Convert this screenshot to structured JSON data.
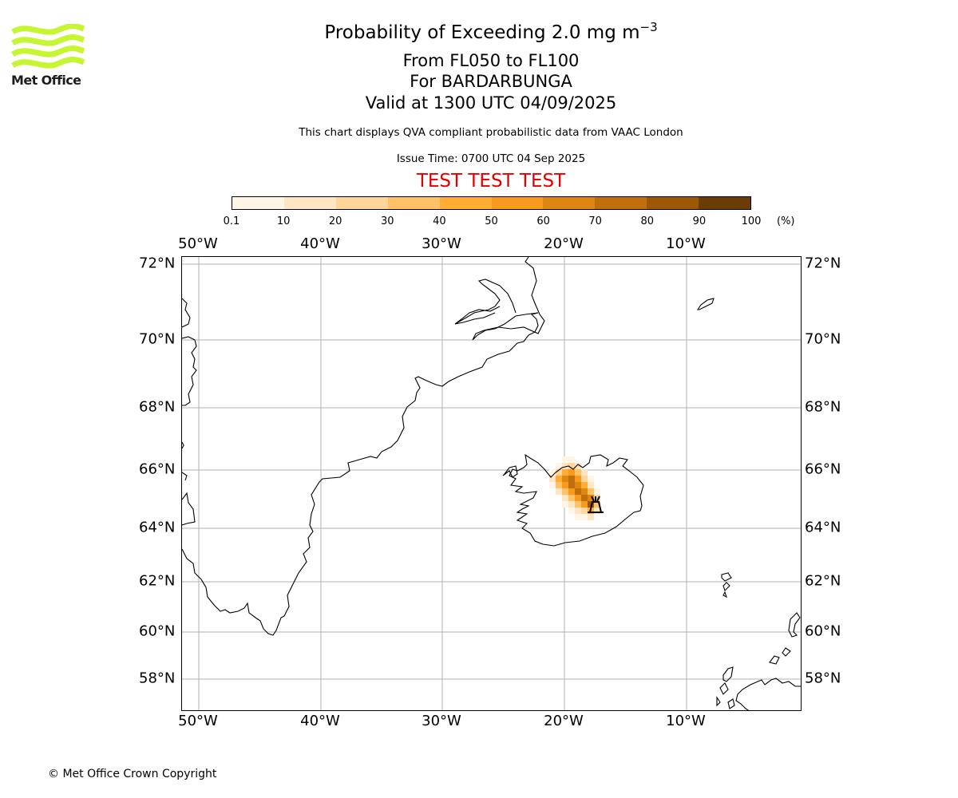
{
  "branding": {
    "logo_text": "Met Office",
    "logo_color": "#c6f531",
    "copyright": "© Met Office Crown Copyright"
  },
  "header": {
    "title_prefix": "Probability of Exceeding 2.0 mg m",
    "title_superscript": "−3",
    "level_range": "From FL050 to FL100",
    "volcano": "For BARDARBUNGA",
    "valid_time": "Valid at 1300 UTC 04/09/2025",
    "description": "This chart displays QVA compliant probabilistic data from VAAC London",
    "issue_time": "Issue Time: 0700 UTC 04 Sep 2025",
    "test_banner": "TEST TEST TEST",
    "test_banner_color": "#e00000"
  },
  "colorbar": {
    "ticks": [
      "0.1",
      "10",
      "20",
      "30",
      "40",
      "50",
      "60",
      "70",
      "80",
      "90",
      "100"
    ],
    "unit": "(%)",
    "colors": [
      "#fff5e6",
      "#ffe6c2",
      "#ffd699",
      "#ffc266",
      "#ffad33",
      "#f79a1e",
      "#dd8610",
      "#bf700a",
      "#9c5805",
      "#6b3c05"
    ]
  },
  "map": {
    "longitude_labels": [
      "50°W",
      "40°W",
      "30°W",
      "20°W",
      "10°W"
    ],
    "latitude_labels": [
      "72°N",
      "70°N",
      "68°N",
      "66°N",
      "64°N",
      "62°N",
      "60°N",
      "58°N"
    ],
    "gridline_color": "#b0b0b0",
    "volcano_name": "BARDARBUNGA",
    "volcano_marker": "volcano-icon"
  }
}
